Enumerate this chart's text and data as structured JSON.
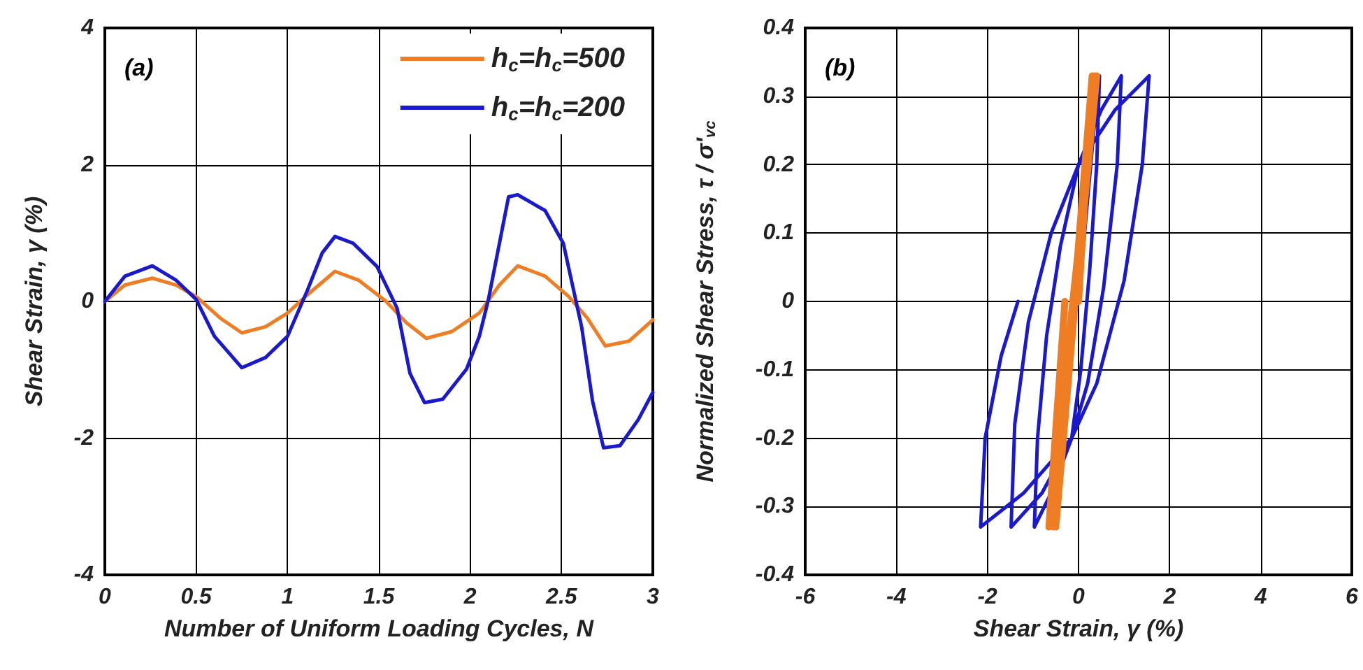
{
  "chart_data": [
    {
      "type": "line",
      "xlabel": "Number of Uniform Loading Cycles, N",
      "ylabel": "Shear Strain, γ (%)",
      "annotations": [
        "(a)"
      ],
      "xlim": [
        0,
        3
      ],
      "xticks": [
        0,
        0.5,
        1,
        1.5,
        2,
        2.5,
        3
      ],
      "ylim": [
        -4,
        4
      ],
      "yticks": [
        -4,
        -2,
        0,
        2,
        4
      ],
      "grid": true,
      "legend": "top right",
      "marker": "none",
      "line_style": "solid",
      "series": [
        {
          "name": "h$_{c}$=h$_{c}$=500",
          "color": "#ee7d24",
          "x": [
            0,
            0.11,
            0.26,
            0.39,
            0.5,
            0.63,
            0.75,
            0.88,
            1.0,
            1.11,
            1.26,
            1.39,
            1.54,
            1.65,
            1.76,
            1.9,
            2.05,
            2.16,
            2.26,
            2.41,
            2.54,
            2.64,
            2.74,
            2.87,
            3.0
          ],
          "values": [
            0,
            0.24,
            0.34,
            0.24,
            0.07,
            -0.24,
            -0.46,
            -0.37,
            -0.17,
            0.1,
            0.44,
            0.31,
            0,
            -0.31,
            -0.54,
            -0.44,
            -0.17,
            0.24,
            0.52,
            0.37,
            0.07,
            -0.24,
            -0.65,
            -0.58,
            -0.27
          ]
        },
        {
          "name": "h$_{c}$=h$_{c}$=200",
          "color": "#1a1acc",
          "x": [
            0,
            0.11,
            0.26,
            0.39,
            0.5,
            0.6,
            0.75,
            0.88,
            1.0,
            1.11,
            1.19,
            1.26,
            1.36,
            1.49,
            1.6,
            1.67,
            1.75,
            1.85,
            1.98,
            2.05,
            2.1,
            2.21,
            2.26,
            2.41,
            2.51,
            2.61,
            2.67,
            2.73,
            2.82,
            2.92,
            3.0
          ],
          "values": [
            0,
            0.37,
            0.52,
            0.31,
            0.03,
            -0.51,
            -0.97,
            -0.82,
            -0.51,
            0.17,
            0.71,
            0.95,
            0.85,
            0.51,
            -0.1,
            -1.05,
            -1.48,
            -1.43,
            -0.99,
            -0.51,
            0.03,
            1.53,
            1.56,
            1.33,
            0.85,
            -0.37,
            -1.46,
            -2.14,
            -2.11,
            -1.73,
            -1.33
          ]
        }
      ]
    },
    {
      "type": "line",
      "xlabel": "Shear Strain, γ (%)",
      "ylabel": "Normalized Shear Stress, τ / σ'$_{vc}$",
      "annotations": [
        "(b)"
      ],
      "xlim": [
        -6,
        6
      ],
      "xticks": [
        -6,
        -4,
        -2,
        0,
        2,
        4,
        6
      ],
      "ylim": [
        -0.4,
        0.4
      ],
      "yticks": [
        -0.4,
        -0.3,
        -0.2,
        -0.1,
        0,
        0.1,
        0.2,
        0.3,
        0.4
      ],
      "grid": true,
      "legend": false,
      "marker": "none",
      "line_style": "solid",
      "series": [
        {
          "color": "#1a1acc",
          "x": [
            0,
            0.2,
            0.35,
            0.46,
            0.4,
            0.25,
            0.05,
            -0.15,
            -0.6,
            -0.97,
            -0.9,
            -0.7,
            -0.4,
            0,
            0.5,
            0.94,
            0.85,
            0.55,
            0.2,
            -0.15,
            -0.8,
            -1.48,
            -1.4,
            -1.1,
            -0.6,
            0,
            0.8,
            1.55,
            1.4,
            1.0,
            0.4,
            -0.15,
            -1.2,
            -2.15,
            -2.05,
            -1.7,
            -1.33
          ],
          "values": [
            0,
            0.15,
            0.26,
            0.33,
            0.2,
            0.05,
            -0.1,
            -0.2,
            -0.28,
            -0.33,
            -0.2,
            -0.05,
            0.08,
            0.2,
            0.28,
            0.33,
            0.2,
            0.02,
            -0.12,
            -0.2,
            -0.28,
            -0.33,
            -0.18,
            -0.03,
            0.1,
            0.2,
            0.28,
            0.33,
            0.2,
            0.03,
            -0.12,
            -0.2,
            -0.28,
            -0.33,
            -0.2,
            -0.08,
            0
          ]
        },
        {
          "color": "#ee7d24",
          "x": [
            0,
            0.3,
            -0.5,
            0.35,
            -0.55,
            0.4,
            -0.65,
            -0.3
          ],
          "values": [
            0,
            0.33,
            -0.33,
            0.33,
            -0.33,
            0.33,
            -0.33,
            0
          ]
        }
      ]
    }
  ]
}
